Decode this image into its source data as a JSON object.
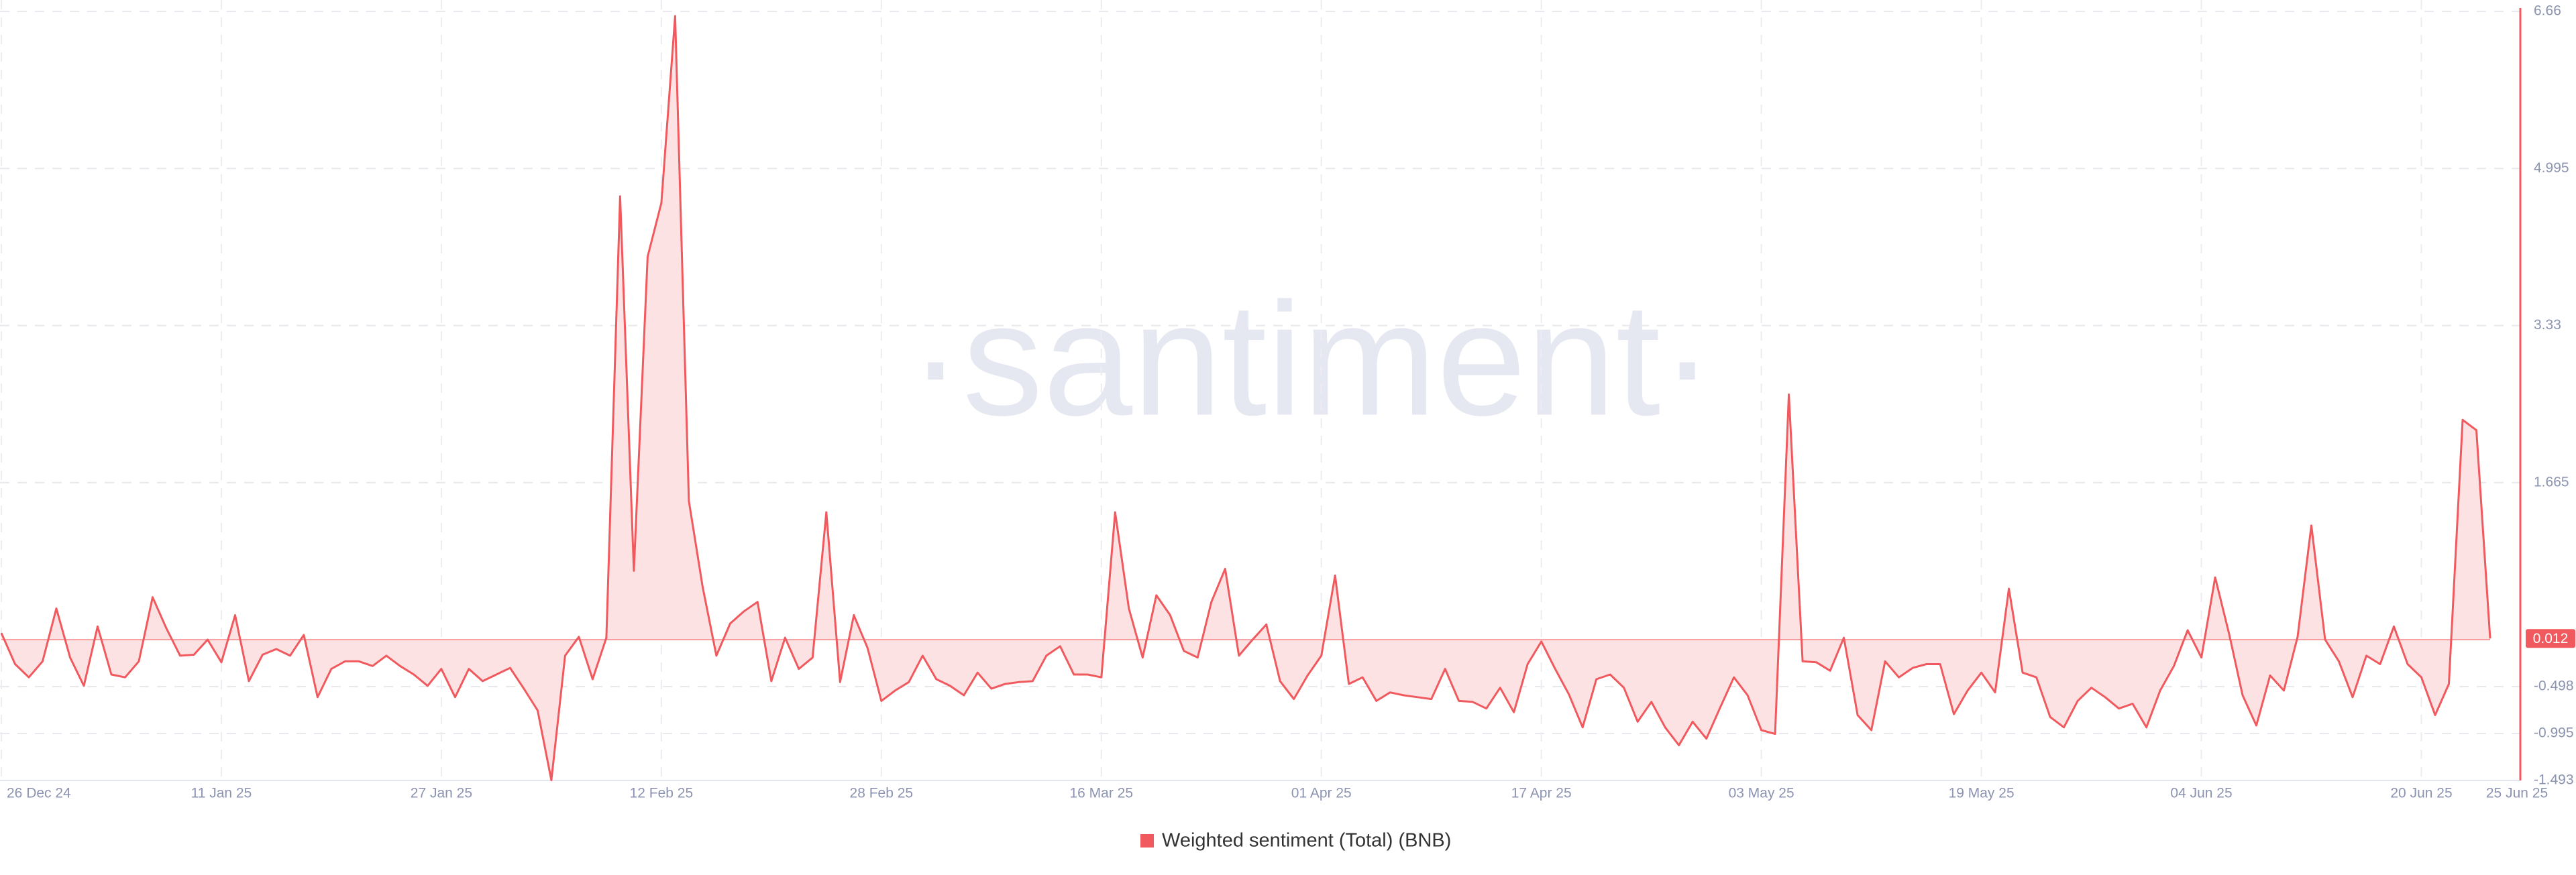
{
  "chart_data": {
    "type": "line",
    "watermark": "·santiment·",
    "categories": [
      "26 Dec 24",
      null,
      null,
      null,
      null,
      null,
      null,
      null,
      null,
      null,
      null,
      null,
      null,
      null,
      null,
      null,
      "11 Jan 25",
      null,
      null,
      null,
      null,
      null,
      null,
      null,
      null,
      null,
      null,
      null,
      null,
      null,
      null,
      null,
      "27 Jan 25",
      null,
      null,
      null,
      null,
      null,
      null,
      null,
      null,
      null,
      null,
      null,
      null,
      null,
      null,
      null,
      "12 Feb 25",
      null,
      null,
      null,
      null,
      null,
      null,
      null,
      null,
      null,
      null,
      null,
      null,
      null,
      null,
      null,
      "28 Feb 25",
      null,
      null,
      null,
      null,
      null,
      null,
      null,
      null,
      null,
      null,
      null,
      null,
      null,
      null,
      null,
      "16 Mar 25",
      null,
      null,
      null,
      null,
      null,
      null,
      null,
      null,
      null,
      null,
      null,
      null,
      null,
      null,
      null,
      "01 Apr 25",
      null,
      null,
      null,
      null,
      null,
      null,
      null,
      null,
      null,
      null,
      null,
      null,
      null,
      null,
      null,
      "17 Apr 25",
      null,
      null,
      null,
      null,
      null,
      null,
      null,
      null,
      null,
      null,
      null,
      null,
      null,
      null,
      null,
      "03 May 25",
      null,
      null,
      null,
      null,
      null,
      null,
      null,
      null,
      null,
      null,
      null,
      null,
      null,
      null,
      null,
      "19 May 25",
      null,
      null,
      null,
      null,
      null,
      null,
      null,
      null,
      null,
      null,
      null,
      null,
      null,
      null,
      null,
      "04 Jun 25",
      null,
      null,
      null,
      null,
      null,
      null,
      null,
      null,
      null,
      null,
      null,
      null,
      null,
      null,
      null,
      "20 Jun 25",
      null,
      null,
      null,
      null,
      "25 Jun 25"
    ],
    "series": [
      {
        "name": "Weighted sentiment (Total) (BNB)",
        "color": "#f05a5e",
        "fill": "#fde2e4",
        "values": [
          0.07,
          -0.26,
          -0.4,
          -0.23,
          0.33,
          -0.19,
          -0.49,
          0.14,
          -0.37,
          -0.4,
          -0.23,
          0.45,
          0.12,
          -0.17,
          -0.16,
          0,
          -0.24,
          0.26,
          -0.44,
          -0.16,
          -0.1,
          -0.17,
          0.05,
          -0.61,
          -0.31,
          -0.23,
          -0.23,
          -0.28,
          -0.17,
          -0.28,
          -0.37,
          -0.49,
          -0.31,
          -0.61,
          -0.31,
          -0.44,
          -0.37,
          -0.3,
          -0.52,
          -0.75,
          -1.49,
          -0.17,
          0.03,
          -0.42,
          0.02,
          4.7,
          0.73,
          4.06,
          4.63,
          6.61,
          1.47,
          0.56,
          -0.17,
          0.17,
          0.3,
          0.4,
          -0.44,
          0.02,
          -0.31,
          -0.19,
          1.35,
          -0.45,
          0.26,
          -0.09,
          -0.65,
          -0.54,
          -0.45,
          -0.17,
          -0.42,
          -0.49,
          -0.59,
          -0.35,
          -0.52,
          -0.47,
          -0.45,
          -0.44,
          -0.17,
          -0.07,
          -0.37,
          -0.37,
          -0.4,
          1.35,
          0.33,
          -0.19,
          0.47,
          0.26,
          -0.12,
          -0.19,
          0.4,
          0.75,
          -0.17,
          0,
          0.16,
          -0.44,
          -0.63,
          -0.38,
          -0.17,
          0.68,
          -0.47,
          -0.4,
          -0.65,
          -0.56,
          -0.59,
          -0.61,
          -0.63,
          -0.31,
          -0.65,
          -0.66,
          -0.73,
          -0.51,
          -0.77,
          -0.26,
          -0.02,
          -0.31,
          -0.58,
          -0.93,
          -0.42,
          -0.37,
          -0.51,
          -0.87,
          -0.66,
          -0.93,
          -1.12,
          -0.87,
          -1.05,
          -0.72,
          -0.4,
          -0.59,
          -0.96,
          -1,
          2.6,
          -0.23,
          -0.24,
          -0.33,
          0.02,
          -0.8,
          -0.96,
          -0.23,
          -0.4,
          -0.3,
          -0.26,
          -0.26,
          -0.79,
          -0.54,
          -0.35,
          -0.56,
          0.54,
          -0.35,
          -0.4,
          -0.82,
          -0.93,
          -0.65,
          -0.51,
          -0.61,
          -0.73,
          -0.68,
          -0.93,
          -0.54,
          -0.28,
          0.1,
          -0.19,
          0.66,
          0.07,
          -0.59,
          -0.91,
          -0.38,
          -0.54,
          0.03,
          1.21,
          0,
          -0.23,
          -0.61,
          -0.17,
          -0.26,
          0.14,
          -0.26,
          -0.4,
          -0.8,
          -0.47,
          2.33,
          2.22,
          0.012
        ]
      }
    ],
    "ylim": [
      -1.493,
      6.66
    ],
    "yticks": [
      6.66,
      4.995,
      3.33,
      1.665,
      -0.498,
      -0.995,
      -1.493
    ],
    "grid": true,
    "legend": "bottom"
  }
}
